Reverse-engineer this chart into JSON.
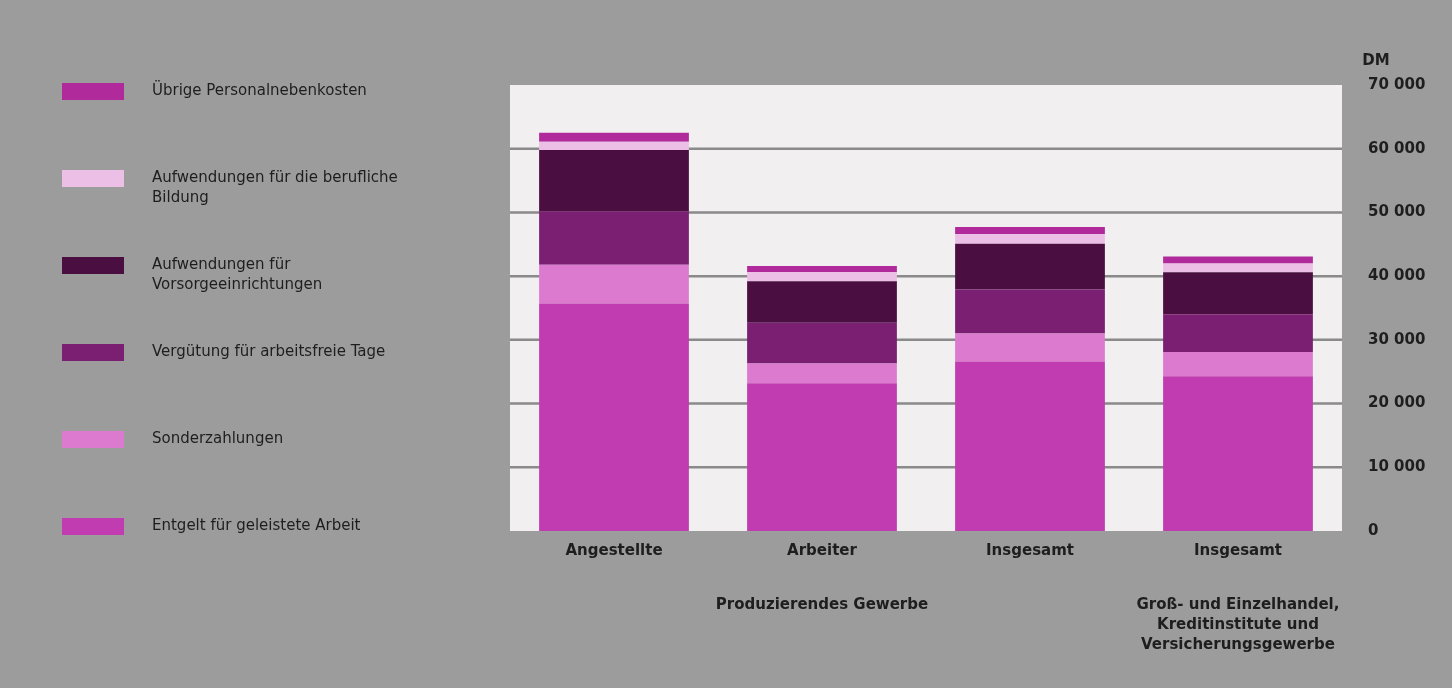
{
  "chart_data": {
    "type": "bar",
    "stacked": true,
    "ylabel": "DM",
    "categories": [
      "Angestellte",
      "Arbeiter",
      "Insgesamt",
      "Insgesamt"
    ],
    "series": [
      {
        "name": "Entgelt für geleistete Arbeit",
        "color": "#c03cb0",
        "values": [
          35700,
          23200,
          26600,
          24300
        ]
      },
      {
        "name": "Sonderzahlungen",
        "color": "#dc7ad0",
        "values": [
          6100,
          3100,
          4400,
          3800
        ]
      },
      {
        "name": "Vergütung für arbeitsfreie Tage",
        "color": "#7a1f72",
        "values": [
          8400,
          6400,
          6900,
          5900
        ]
      },
      {
        "name": "Aufwendungen für Vorsorgeeinrichtungen",
        "color": "#4a0f40",
        "values": [
          9600,
          6500,
          7200,
          6600
        ]
      },
      {
        "name": "Aufwendungen für die berufliche Bildung",
        "color": "#ecc0e6",
        "values": [
          1300,
          1400,
          1500,
          1400
        ]
      },
      {
        "name": "Übrige Personalnebenkosten",
        "color": "#b02a9c",
        "values": [
          1400,
          1000,
          1100,
          1100
        ]
      }
    ],
    "ylim": [
      0,
      70000
    ],
    "yticks": [
      0,
      {
        "value": 10000,
        "label": "10 000"
      },
      {
        "value": 20000,
        "label": "20 000"
      },
      {
        "value": 30000,
        "label": "30 000"
      },
      {
        "value": 40000,
        "label": "40 000"
      },
      {
        "value": 50000,
        "label": "50 000"
      },
      {
        "value": 60000,
        "label": "60 000"
      },
      {
        "value": 70000,
        "label": "70 000"
      }
    ],
    "grid": "y",
    "legend": "left",
    "annotations": [
      "Produzierendes Gewerbe",
      "Groß- und Einzelhandel, Kreditinstitute und Versicherungsgewerbe"
    ]
  }
}
